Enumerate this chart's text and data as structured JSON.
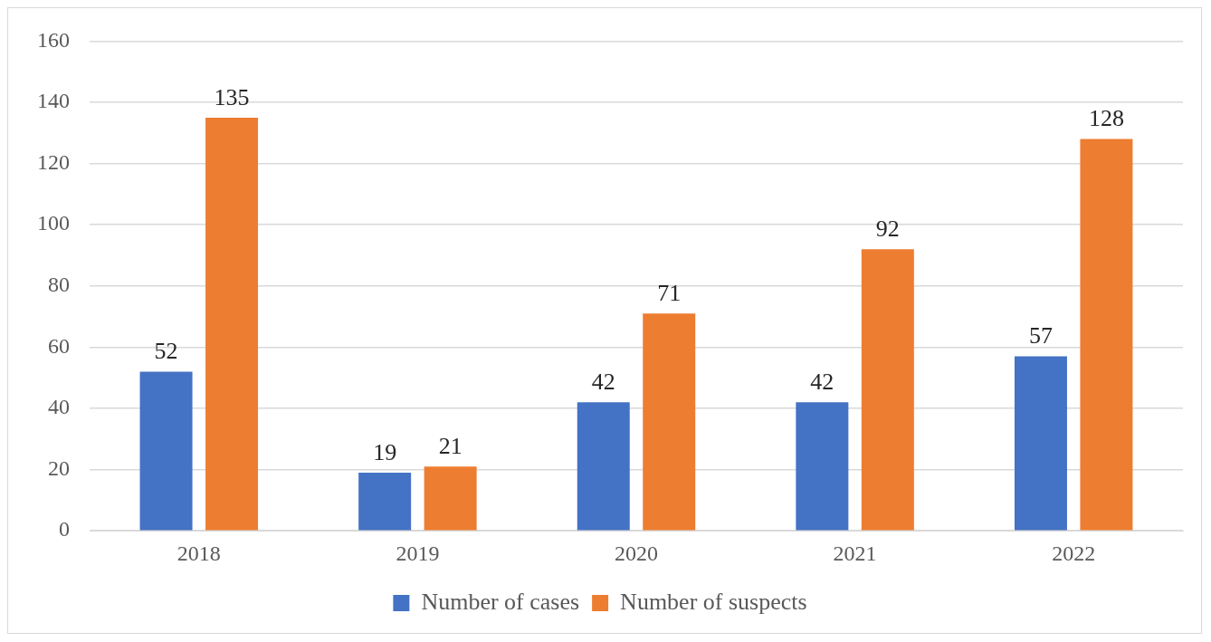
{
  "chart_data": {
    "type": "bar",
    "categories": [
      "2018",
      "2019",
      "2020",
      "2021",
      "2022"
    ],
    "series": [
      {
        "name": "Number of cases",
        "color": "#4472c4",
        "values": [
          52,
          19,
          42,
          42,
          57
        ]
      },
      {
        "name": "Number of suspects",
        "color": "#ed7d31",
        "values": [
          135,
          21,
          71,
          92,
          128
        ]
      }
    ],
    "ylim": [
      0,
      160
    ],
    "yticks": [
      0,
      20,
      40,
      60,
      80,
      100,
      120,
      140,
      160
    ],
    "grid": "y",
    "legend": "bottom",
    "data_labels": true
  }
}
